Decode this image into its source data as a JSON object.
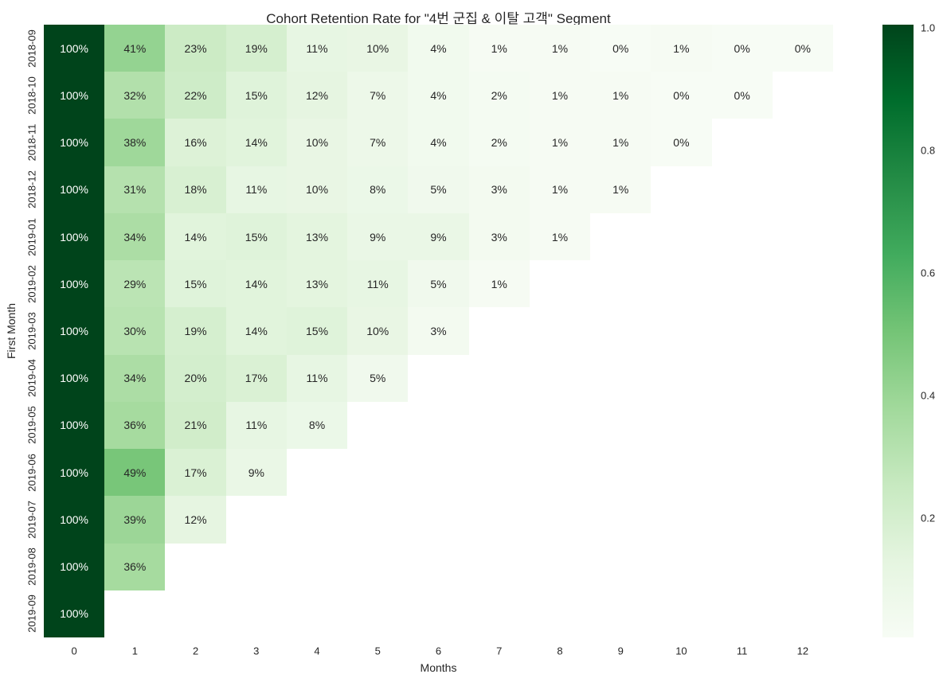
{
  "chart_data": {
    "type": "heatmap",
    "title": "Cohort Retention Rate for \"4번 군집 & 이탈 고객\" Segment",
    "xlabel": "Months",
    "ylabel": "First Month",
    "x_ticks": [
      "0",
      "1",
      "2",
      "3",
      "4",
      "5",
      "6",
      "7",
      "8",
      "9",
      "10",
      "11",
      "12"
    ],
    "y_ticks": [
      "2018-09",
      "2018-10",
      "2018-11",
      "2018-12",
      "2019-01",
      "2019-02",
      "2019-03",
      "2019-04",
      "2019-05",
      "2019-06",
      "2019-07",
      "2019-08",
      "2019-09"
    ],
    "annotation_unit": "%",
    "values_percent": [
      [
        100,
        41,
        23,
        19,
        11,
        10,
        4,
        1,
        1,
        0,
        1,
        0,
        0
      ],
      [
        100,
        32,
        22,
        15,
        12,
        7,
        4,
        2,
        1,
        1,
        0,
        0,
        null
      ],
      [
        100,
        38,
        16,
        14,
        10,
        7,
        4,
        2,
        1,
        1,
        0,
        null,
        null
      ],
      [
        100,
        31,
        18,
        11,
        10,
        8,
        5,
        3,
        1,
        1,
        null,
        null,
        null
      ],
      [
        100,
        34,
        14,
        15,
        13,
        9,
        9,
        3,
        1,
        null,
        null,
        null,
        null
      ],
      [
        100,
        29,
        15,
        14,
        13,
        11,
        5,
        1,
        null,
        null,
        null,
        null,
        null
      ],
      [
        100,
        30,
        19,
        14,
        15,
        10,
        3,
        null,
        null,
        null,
        null,
        null,
        null
      ],
      [
        100,
        34,
        20,
        17,
        11,
        5,
        null,
        null,
        null,
        null,
        null,
        null,
        null
      ],
      [
        100,
        36,
        21,
        11,
        8,
        null,
        null,
        null,
        null,
        null,
        null,
        null,
        null
      ],
      [
        100,
        49,
        17,
        9,
        null,
        null,
        null,
        null,
        null,
        null,
        null,
        null,
        null
      ],
      [
        100,
        39,
        12,
        null,
        null,
        null,
        null,
        null,
        null,
        null,
        null,
        null,
        null
      ],
      [
        100,
        36,
        null,
        null,
        null,
        null,
        null,
        null,
        null,
        null,
        null,
        null,
        null
      ],
      [
        100,
        null,
        null,
        null,
        null,
        null,
        null,
        null,
        null,
        null,
        null,
        null,
        null
      ]
    ],
    "vmin": 0,
    "vmax": 1,
    "colormap": {
      "name": "Greens",
      "anchors": [
        {
          "pos": 0.0,
          "color": "#f7fcf5"
        },
        {
          "pos": 0.125,
          "color": "#e5f5e0"
        },
        {
          "pos": 0.25,
          "color": "#c7e9c0"
        },
        {
          "pos": 0.375,
          "color": "#a1d99b"
        },
        {
          "pos": 0.5,
          "color": "#74c476"
        },
        {
          "pos": 0.625,
          "color": "#41ab5d"
        },
        {
          "pos": 0.75,
          "color": "#238b45"
        },
        {
          "pos": 0.875,
          "color": "#006d2c"
        },
        {
          "pos": 1.0,
          "color": "#00441b"
        }
      ]
    },
    "colorbar_ticks": [
      {
        "label": "1.0",
        "value": 1.0
      },
      {
        "label": "0.8",
        "value": 0.8
      },
      {
        "label": "0.6",
        "value": 0.6
      },
      {
        "label": "0.4",
        "value": 0.4
      },
      {
        "label": "0.2",
        "value": 0.2
      }
    ],
    "annotation_text_dark": "#262626",
    "annotation_text_light": "#ffffff",
    "background": "#ffffff",
    "legend_position": "right-colorbar",
    "grid": false
  }
}
